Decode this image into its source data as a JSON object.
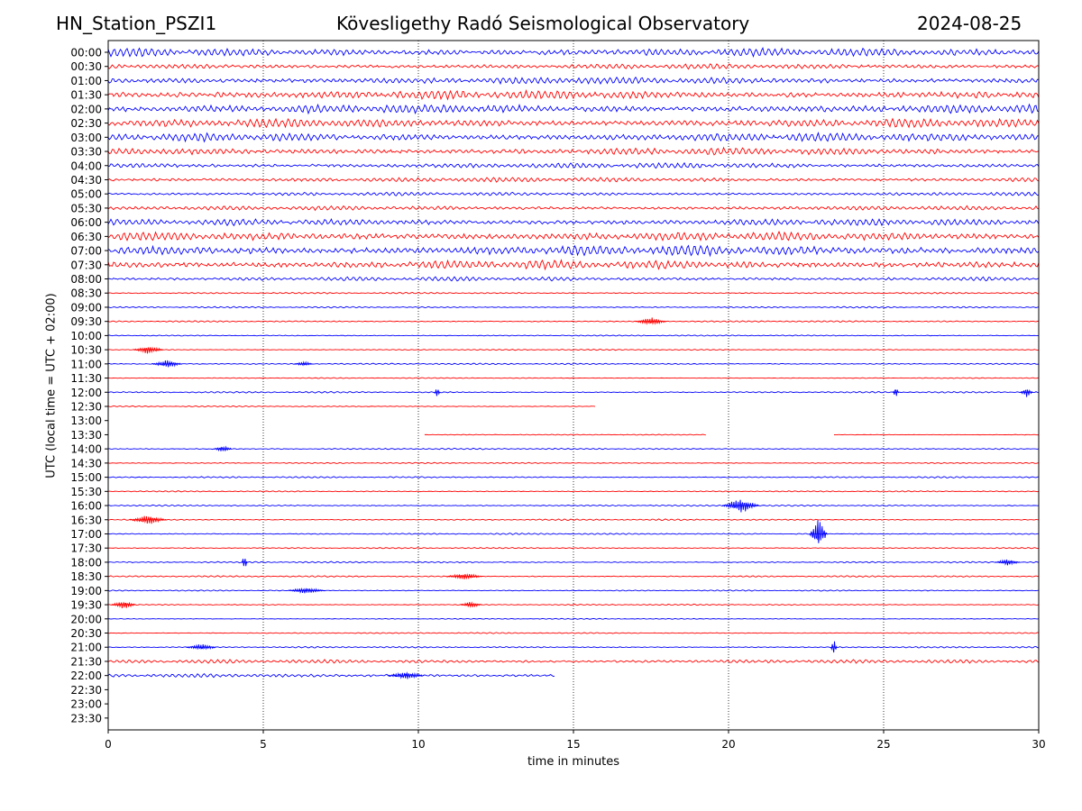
{
  "header": {
    "station": "HN_Station_PSZI1",
    "title": "Kövesligethy Radó Seismological Observatory",
    "date": "2024-08-25"
  },
  "chart_data": {
    "type": "line",
    "title": "Kövesligethy Radó Seismological Observatory",
    "xlabel": "time in minutes",
    "ylabel": "UTC (local time = UTC + 02:00)",
    "xlim": [
      0,
      30
    ],
    "xticks": [
      0,
      5,
      10,
      15,
      20,
      25,
      30
    ],
    "vertical_gridlines_at": [
      5,
      10,
      15,
      20,
      25
    ],
    "row_labels": [
      "00:00",
      "00:30",
      "01:00",
      "01:30",
      "02:00",
      "02:30",
      "03:00",
      "03:30",
      "04:00",
      "04:30",
      "05:00",
      "05:30",
      "06:00",
      "06:30",
      "07:00",
      "07:30",
      "08:00",
      "08:30",
      "09:00",
      "09:30",
      "10:00",
      "10:30",
      "11:00",
      "11:30",
      "12:00",
      "12:30",
      "13:00",
      "13:30",
      "14:00",
      "14:30",
      "15:00",
      "15:30",
      "16:00",
      "16:30",
      "17:00",
      "17:30",
      "18:00",
      "18:30",
      "19:00",
      "19:30",
      "20:00",
      "20:30",
      "21:00",
      "21:30",
      "22:00",
      "22:30",
      "23:00",
      "23:30"
    ],
    "colors": {
      "even_rows": "#0000ff",
      "odd_rows": "#ff0000"
    },
    "traces": [
      {
        "row": "00:00",
        "segments": [
          [
            0,
            30
          ]
        ],
        "amplitude": 0.28
      },
      {
        "row": "00:30",
        "segments": [
          [
            0,
            30
          ]
        ],
        "amplitude": 0.18
      },
      {
        "row": "01:00",
        "segments": [
          [
            0,
            30
          ]
        ],
        "amplitude": 0.24
      },
      {
        "row": "01:30",
        "segments": [
          [
            0,
            30
          ]
        ],
        "amplitude": 0.3
      },
      {
        "row": "02:00",
        "segments": [
          [
            0,
            30
          ]
        ],
        "amplitude": 0.3
      },
      {
        "row": "02:30",
        "segments": [
          [
            0,
            30
          ]
        ],
        "amplitude": 0.28
      },
      {
        "row": "03:00",
        "segments": [
          [
            0,
            30
          ]
        ],
        "amplitude": 0.28
      },
      {
        "row": "03:30",
        "segments": [
          [
            0,
            30
          ]
        ],
        "amplitude": 0.24
      },
      {
        "row": "04:00",
        "segments": [
          [
            0,
            30
          ]
        ],
        "amplitude": 0.18
      },
      {
        "row": "04:30",
        "segments": [
          [
            0,
            30
          ]
        ],
        "amplitude": 0.16
      },
      {
        "row": "05:00",
        "segments": [
          [
            0,
            30
          ]
        ],
        "amplitude": 0.12
      },
      {
        "row": "05:30",
        "segments": [
          [
            0,
            30
          ]
        ],
        "amplitude": 0.15
      },
      {
        "row": "06:00",
        "segments": [
          [
            0,
            30
          ]
        ],
        "amplitude": 0.22
      },
      {
        "row": "06:30",
        "segments": [
          [
            0,
            30
          ]
        ],
        "amplitude": 0.3
      },
      {
        "row": "07:00",
        "segments": [
          [
            0,
            30
          ]
        ],
        "amplitude": 0.35
      },
      {
        "row": "07:30",
        "segments": [
          [
            0,
            30
          ]
        ],
        "amplitude": 0.3
      },
      {
        "row": "08:00",
        "segments": [
          [
            0,
            30
          ]
        ],
        "amplitude": 0.14
      },
      {
        "row": "08:30",
        "segments": [
          [
            0,
            30
          ]
        ],
        "amplitude": 0.05
      },
      {
        "row": "09:00",
        "segments": [
          [
            0,
            30
          ]
        ],
        "amplitude": 0.05
      },
      {
        "row": "09:30",
        "segments": [
          [
            0,
            30
          ]
        ],
        "amplitude": 0.05
      },
      {
        "row": "10:00",
        "segments": [
          [
            0,
            30
          ]
        ],
        "amplitude": 0.04
      },
      {
        "row": "10:30",
        "segments": [
          [
            0,
            30
          ]
        ],
        "amplitude": 0.04
      },
      {
        "row": "11:00",
        "segments": [
          [
            0,
            30
          ]
        ],
        "amplitude": 0.05
      },
      {
        "row": "11:30",
        "segments": [
          [
            0,
            30
          ]
        ],
        "amplitude": 0.03
      },
      {
        "row": "12:00",
        "segments": [
          [
            0,
            30
          ]
        ],
        "amplitude": 0.05
      },
      {
        "row": "12:30",
        "segments": [
          [
            0,
            15.7
          ]
        ],
        "amplitude": 0.04
      },
      {
        "row": "13:00",
        "segments": [],
        "amplitude": 0
      },
      {
        "row": "13:30",
        "segments": [
          [
            10.2,
            19.3
          ],
          [
            23.4,
            30
          ]
        ],
        "amplitude": 0.03
      },
      {
        "row": "14:00",
        "segments": [
          [
            0,
            30
          ]
        ],
        "amplitude": 0.05
      },
      {
        "row": "14:30",
        "segments": [
          [
            0,
            30
          ]
        ],
        "amplitude": 0.04
      },
      {
        "row": "15:00",
        "segments": [
          [
            0,
            30
          ]
        ],
        "amplitude": 0.05
      },
      {
        "row": "15:30",
        "segments": [
          [
            0,
            30
          ]
        ],
        "amplitude": 0.04
      },
      {
        "row": "16:00",
        "segments": [
          [
            0,
            30
          ]
        ],
        "amplitude": 0.05
      },
      {
        "row": "16:30",
        "segments": [
          [
            0,
            30
          ]
        ],
        "amplitude": 0.05
      },
      {
        "row": "17:00",
        "segments": [
          [
            0,
            30
          ]
        ],
        "amplitude": 0.05
      },
      {
        "row": "17:30",
        "segments": [
          [
            0,
            30
          ]
        ],
        "amplitude": 0.04
      },
      {
        "row": "18:00",
        "segments": [
          [
            0,
            30
          ]
        ],
        "amplitude": 0.05
      },
      {
        "row": "18:30",
        "segments": [
          [
            0,
            30
          ]
        ],
        "amplitude": 0.05
      },
      {
        "row": "19:00",
        "segments": [
          [
            0,
            30
          ]
        ],
        "amplitude": 0.04
      },
      {
        "row": "19:30",
        "segments": [
          [
            0,
            30
          ]
        ],
        "amplitude": 0.04
      },
      {
        "row": "20:00",
        "segments": [
          [
            0,
            30
          ]
        ],
        "amplitude": 0.03
      },
      {
        "row": "20:30",
        "segments": [
          [
            0,
            30
          ]
        ],
        "amplitude": 0.04
      },
      {
        "row": "21:00",
        "segments": [
          [
            0,
            30
          ]
        ],
        "amplitude": 0.05
      },
      {
        "row": "21:30",
        "segments": [
          [
            0,
            30
          ]
        ],
        "amplitude": 0.12
      },
      {
        "row": "22:00",
        "segments": [
          [
            0,
            14.4
          ]
        ],
        "amplitude": 0.12
      },
      {
        "row": "22:30",
        "segments": [],
        "amplitude": 0
      },
      {
        "row": "23:00",
        "segments": [],
        "amplitude": 0
      },
      {
        "row": "23:30",
        "segments": [],
        "amplitude": 0
      }
    ],
    "events": [
      {
        "row": "10:30",
        "t": 1.3,
        "amplitude": 0.25,
        "duration": 1.0
      },
      {
        "row": "11:00",
        "t": 1.9,
        "amplitude": 0.25,
        "duration": 1.0
      },
      {
        "row": "11:00",
        "t": 6.3,
        "amplitude": 0.15,
        "duration": 0.6
      },
      {
        "row": "12:00",
        "t": 10.6,
        "amplitude": 0.4,
        "duration": 0.2
      },
      {
        "row": "12:00",
        "t": 25.4,
        "amplitude": 0.4,
        "duration": 0.2
      },
      {
        "row": "12:00",
        "t": 29.6,
        "amplitude": 0.3,
        "duration": 0.4
      },
      {
        "row": "09:30",
        "t": 17.5,
        "amplitude": 0.25,
        "duration": 1.0
      },
      {
        "row": "16:00",
        "t": 20.4,
        "amplitude": 0.45,
        "duration": 1.2
      },
      {
        "row": "16:30",
        "t": 1.3,
        "amplitude": 0.3,
        "duration": 1.2
      },
      {
        "row": "17:00",
        "t": 22.9,
        "amplitude": 0.9,
        "duration": 0.6
      },
      {
        "row": "18:00",
        "t": 4.4,
        "amplitude": 0.5,
        "duration": 0.2
      },
      {
        "row": "18:00",
        "t": 29.0,
        "amplitude": 0.2,
        "duration": 0.8
      },
      {
        "row": "18:30",
        "t": 11.5,
        "amplitude": 0.2,
        "duration": 1.2
      },
      {
        "row": "19:00",
        "t": 6.4,
        "amplitude": 0.2,
        "duration": 1.2
      },
      {
        "row": "19:30",
        "t": 0.5,
        "amplitude": 0.25,
        "duration": 0.8
      },
      {
        "row": "19:30",
        "t": 11.7,
        "amplitude": 0.2,
        "duration": 0.7
      },
      {
        "row": "21:00",
        "t": 3.0,
        "amplitude": 0.2,
        "duration": 1.0
      },
      {
        "row": "21:00",
        "t": 23.4,
        "amplitude": 0.6,
        "duration": 0.2
      },
      {
        "row": "22:00",
        "t": 9.6,
        "amplitude": 0.25,
        "duration": 1.2
      },
      {
        "row": "14:00",
        "t": 3.7,
        "amplitude": 0.2,
        "duration": 0.6
      }
    ]
  }
}
